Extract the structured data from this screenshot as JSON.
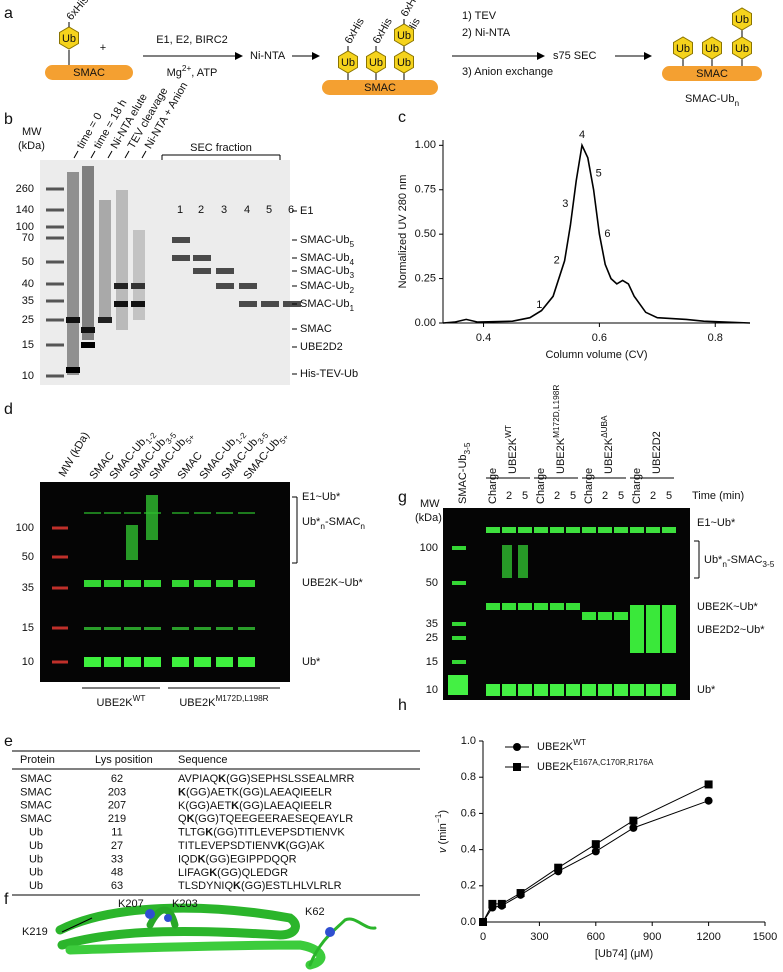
{
  "panel_labels": [
    "a",
    "b",
    "c",
    "d",
    "e",
    "f",
    "g",
    "h"
  ],
  "a": {
    "his_tag": "6xHis",
    "ub": "Ub",
    "plus": "+",
    "smac": "SMAC",
    "step1": [
      "E1, E2, BIRC2",
      [
        {
          "t": "Mg"
        },
        {
          "t": "2+",
          "s": "sup"
        },
        {
          "t": ", ATP"
        }
      ]
    ],
    "step2": "Ni-NTA",
    "step3": [
      "1) TEV",
      "2) Ni-NTA",
      "3) Anion exchange"
    ],
    "step4": "s75 SEC",
    "product": [
      {
        "t": "SMAC-Ub"
      },
      {
        "t": "n",
        "s": "sub"
      }
    ]
  },
  "b": {
    "mw_title": [
      "MW",
      "(kDa)"
    ],
    "mw": [
      260,
      140,
      100,
      70,
      50,
      40,
      35,
      25,
      15,
      10
    ],
    "lanes": [
      "time = 0",
      "time = 18 h",
      "Ni-NTA elute",
      "TEV cleavage",
      "Ni-NTA + Anion"
    ],
    "sec_title": "SEC fraction",
    "fractions": [
      "1",
      "2",
      "3",
      "4",
      "5",
      "6"
    ],
    "bands": [
      "E1",
      [
        {
          "t": "SMAC-Ub"
        },
        {
          "t": "5",
          "s": "sub"
        }
      ],
      [
        {
          "t": "SMAC-Ub"
        },
        {
          "t": "4",
          "s": "sub"
        }
      ],
      [
        {
          "t": "SMAC-Ub"
        },
        {
          "t": "3",
          "s": "sub"
        }
      ],
      [
        {
          "t": "SMAC-Ub"
        },
        {
          "t": "2",
          "s": "sub"
        }
      ],
      [
        {
          "t": "SMAC-Ub"
        },
        {
          "t": "1",
          "s": "sub"
        }
      ],
      "SMAC",
      "UBE2D2",
      "His-TEV-Ub"
    ]
  },
  "d": {
    "mw_title": "MW (kDa)",
    "mw": [
      100,
      50,
      35,
      15,
      10
    ],
    "lanes": [
      "SMAC",
      [
        {
          "t": "SMAC-Ub"
        },
        {
          "t": "1-2",
          "s": "sub"
        }
      ],
      [
        {
          "t": "SMAC-Ub"
        },
        {
          "t": "3-5",
          "s": "sub"
        }
      ],
      [
        {
          "t": "SMAC-Ub"
        },
        {
          "t": "5+",
          "s": "sub"
        }
      ],
      "SMAC",
      [
        {
          "t": "SMAC-Ub"
        },
        {
          "t": "1-2",
          "s": "sub"
        }
      ],
      [
        {
          "t": "SMAC-Ub"
        },
        {
          "t": "3-5",
          "s": "sub"
        }
      ],
      [
        {
          "t": "SMAC-Ub"
        },
        {
          "t": "5+",
          "s": "sub"
        }
      ]
    ],
    "bands": [
      "E1~Ub*",
      [
        {
          "t": "Ub*"
        },
        {
          "t": "n",
          "s": "sub"
        },
        {
          "t": "-SMAC"
        },
        {
          "t": "n",
          "s": "sub"
        }
      ],
      "UBE2K~Ub*",
      "Ub*"
    ],
    "groups": [
      [
        {
          "t": "UBE2K"
        },
        {
          "t": "WT",
          "s": "sup"
        }
      ],
      [
        {
          "t": "UBE2K"
        },
        {
          "t": "M172D,L198R",
          "s": "sup"
        }
      ]
    ]
  },
  "e": {
    "columns": [
      "Protein",
      "Lys position",
      "Sequence"
    ],
    "rows": [
      [
        "SMAC",
        62,
        [
          {
            "t": "AVPIAQ"
          },
          {
            "t": "K",
            "s": "b"
          },
          {
            "t": "(GG)SEPHSLSSEALMRR"
          }
        ]
      ],
      [
        "SMAC",
        203,
        [
          {
            "t": "K",
            "s": "b"
          },
          {
            "t": "(GG)AETK(GG)LAEAQIEELR"
          }
        ]
      ],
      [
        "SMAC",
        207,
        [
          {
            "t": "K(GG)AET"
          },
          {
            "t": "K",
            "s": "b"
          },
          {
            "t": "(GG)LAEAQIEELR"
          }
        ]
      ],
      [
        "SMAC",
        219,
        [
          {
            "t": "Q"
          },
          {
            "t": "K",
            "s": "b"
          },
          {
            "t": "(GG)TQEEGEERAESEQEAYLR"
          }
        ]
      ],
      [
        "Ub",
        11,
        [
          {
            "t": "TLTG"
          },
          {
            "t": "K",
            "s": "b"
          },
          {
            "t": "(GG)TITLEVEPSDTIENVK"
          }
        ]
      ],
      [
        "Ub",
        27,
        [
          {
            "t": "TITLEVEPSDTIENV"
          },
          {
            "t": "K",
            "s": "b"
          },
          {
            "t": "(GG)AK"
          }
        ]
      ],
      [
        "Ub",
        33,
        [
          {
            "t": "IQD"
          },
          {
            "t": "K",
            "s": "b"
          },
          {
            "t": "(GG)EGIPPDQQR"
          }
        ]
      ],
      [
        "Ub",
        48,
        [
          {
            "t": "LIFAG"
          },
          {
            "t": "K",
            "s": "b"
          },
          {
            "t": "(GG)QLEDGR"
          }
        ]
      ],
      [
        "Ub",
        63,
        [
          {
            "t": "TLSDYNIQ"
          },
          {
            "t": "K",
            "s": "b"
          },
          {
            "t": "(GG)ESTLHLVLRLR"
          }
        ]
      ]
    ]
  },
  "f": {
    "labels": [
      "K207",
      "K203",
      "K62",
      "K219"
    ]
  },
  "g": {
    "mw_title": [
      "MW",
      "(kDa)"
    ],
    "mw": [
      100,
      50,
      35,
      25,
      15,
      10
    ],
    "first_lane": [
      {
        "t": "SMAC-Ub"
      },
      {
        "t": "3-5",
        "s": "sub"
      }
    ],
    "groups": [
      [
        {
          "t": "UBE2K"
        },
        {
          "t": "WT",
          "s": "sup"
        }
      ],
      [
        {
          "t": "UBE2K"
        },
        {
          "t": "M172D,L198R",
          "s": "sup"
        }
      ],
      [
        {
          "t": "UBE2K"
        },
        {
          "t": "ΔUBA",
          "s": "sup"
        }
      ],
      "UBE2D2"
    ],
    "time_points": [
      "Charge",
      "2",
      "5"
    ],
    "time_title": "Time (min)",
    "bands": [
      "E1~Ub*",
      [
        {
          "t": "Ub*"
        },
        {
          "t": "n",
          "s": "sub"
        },
        {
          "t": "-SMAC"
        },
        {
          "t": "3-5",
          "s": "sub"
        }
      ],
      "UBE2K~Ub*",
      "UBE2D2~Ub*",
      "Ub*"
    ]
  },
  "chart_data": [
    {
      "type": "line",
      "xlabel": "Column volume (CV)",
      "ylabel": "Normalized UV 280 nm",
      "color": "#000000",
      "x": [
        0.33,
        0.35,
        0.37,
        0.39,
        0.45,
        0.48,
        0.5,
        0.52,
        0.54,
        0.55,
        0.56,
        0.57,
        0.58,
        0.59,
        0.6,
        0.61,
        0.62,
        0.63,
        0.64,
        0.65,
        0.66,
        0.68,
        0.7,
        0.75,
        0.78,
        0.86
      ],
      "values": [
        0.0,
        0.005,
        0.02,
        0.005,
        0.01,
        0.03,
        0.07,
        0.15,
        0.35,
        0.55,
        0.8,
        1.0,
        0.93,
        0.75,
        0.5,
        0.33,
        0.25,
        0.22,
        0.24,
        0.22,
        0.15,
        0.06,
        0.03,
        0.02,
        0.01,
        0.0
      ],
      "annotations": [
        {
          "label": "1",
          "x": 0.51,
          "y": 0.1
        },
        {
          "label": "2",
          "x": 0.54,
          "y": 0.35
        },
        {
          "label": "3",
          "x": 0.555,
          "y": 0.67
        },
        {
          "label": "4",
          "x": 0.57,
          "y": 1.0
        },
        {
          "label": "5",
          "x": 0.585,
          "y": 0.84
        },
        {
          "label": "6",
          "x": 0.6,
          "y": 0.5
        }
      ],
      "xlim": [
        0.33,
        0.86
      ],
      "ylim": [
        0,
        1.03
      ],
      "xticks": [
        0.4,
        0.6,
        0.8
      ],
      "yticks": [
        {
          "value": 0,
          "label": "0.00"
        },
        {
          "value": 0.25,
          "label": "0.25"
        },
        {
          "value": 0.5,
          "label": "0.50"
        },
        {
          "value": 0.75,
          "label": "0.75"
        },
        {
          "value": 1,
          "label": "1.00"
        }
      ]
    },
    {
      "type": "scatter",
      "xlabel": "[Ub74] (μM)",
      "ylabel": [
        {
          "t": "v",
          "s": "i"
        },
        {
          "t": " (min"
        },
        {
          "t": "−1",
          "s": "sup"
        },
        {
          "t": ")"
        }
      ],
      "x": [
        0,
        50,
        100,
        200,
        400,
        600,
        800,
        1200
      ],
      "series": [
        {
          "name": [
            {
              "t": "UBE2K"
            },
            {
              "t": "WT",
              "s": "sup"
            }
          ],
          "marker": "circle",
          "color": "#000000",
          "values": [
            0,
            0.08,
            0.09,
            0.15,
            0.28,
            0.39,
            0.52,
            0.67
          ]
        },
        {
          "name": [
            {
              "t": "UBE2K"
            },
            {
              "t": "E167A,C170R,R176A",
              "s": "sup"
            }
          ],
          "marker": "square",
          "color": "#000000",
          "values": [
            0,
            0.1,
            0.1,
            0.16,
            0.3,
            0.43,
            0.56,
            0.76
          ]
        }
      ],
      "legend": "top-left",
      "xlim": [
        0,
        1500
      ],
      "ylim": [
        0,
        1
      ],
      "xticks": [
        0,
        300,
        600,
        900,
        1200,
        1500
      ],
      "yticks": [
        {
          "value": 0,
          "label": "0.0"
        },
        {
          "value": 0.2,
          "label": "0.2"
        },
        {
          "value": 0.4,
          "label": "0.4"
        },
        {
          "value": 0.6,
          "label": "0.6"
        },
        {
          "value": 0.8,
          "label": "0.8"
        },
        {
          "value": 1,
          "label": "1.0"
        }
      ]
    }
  ]
}
